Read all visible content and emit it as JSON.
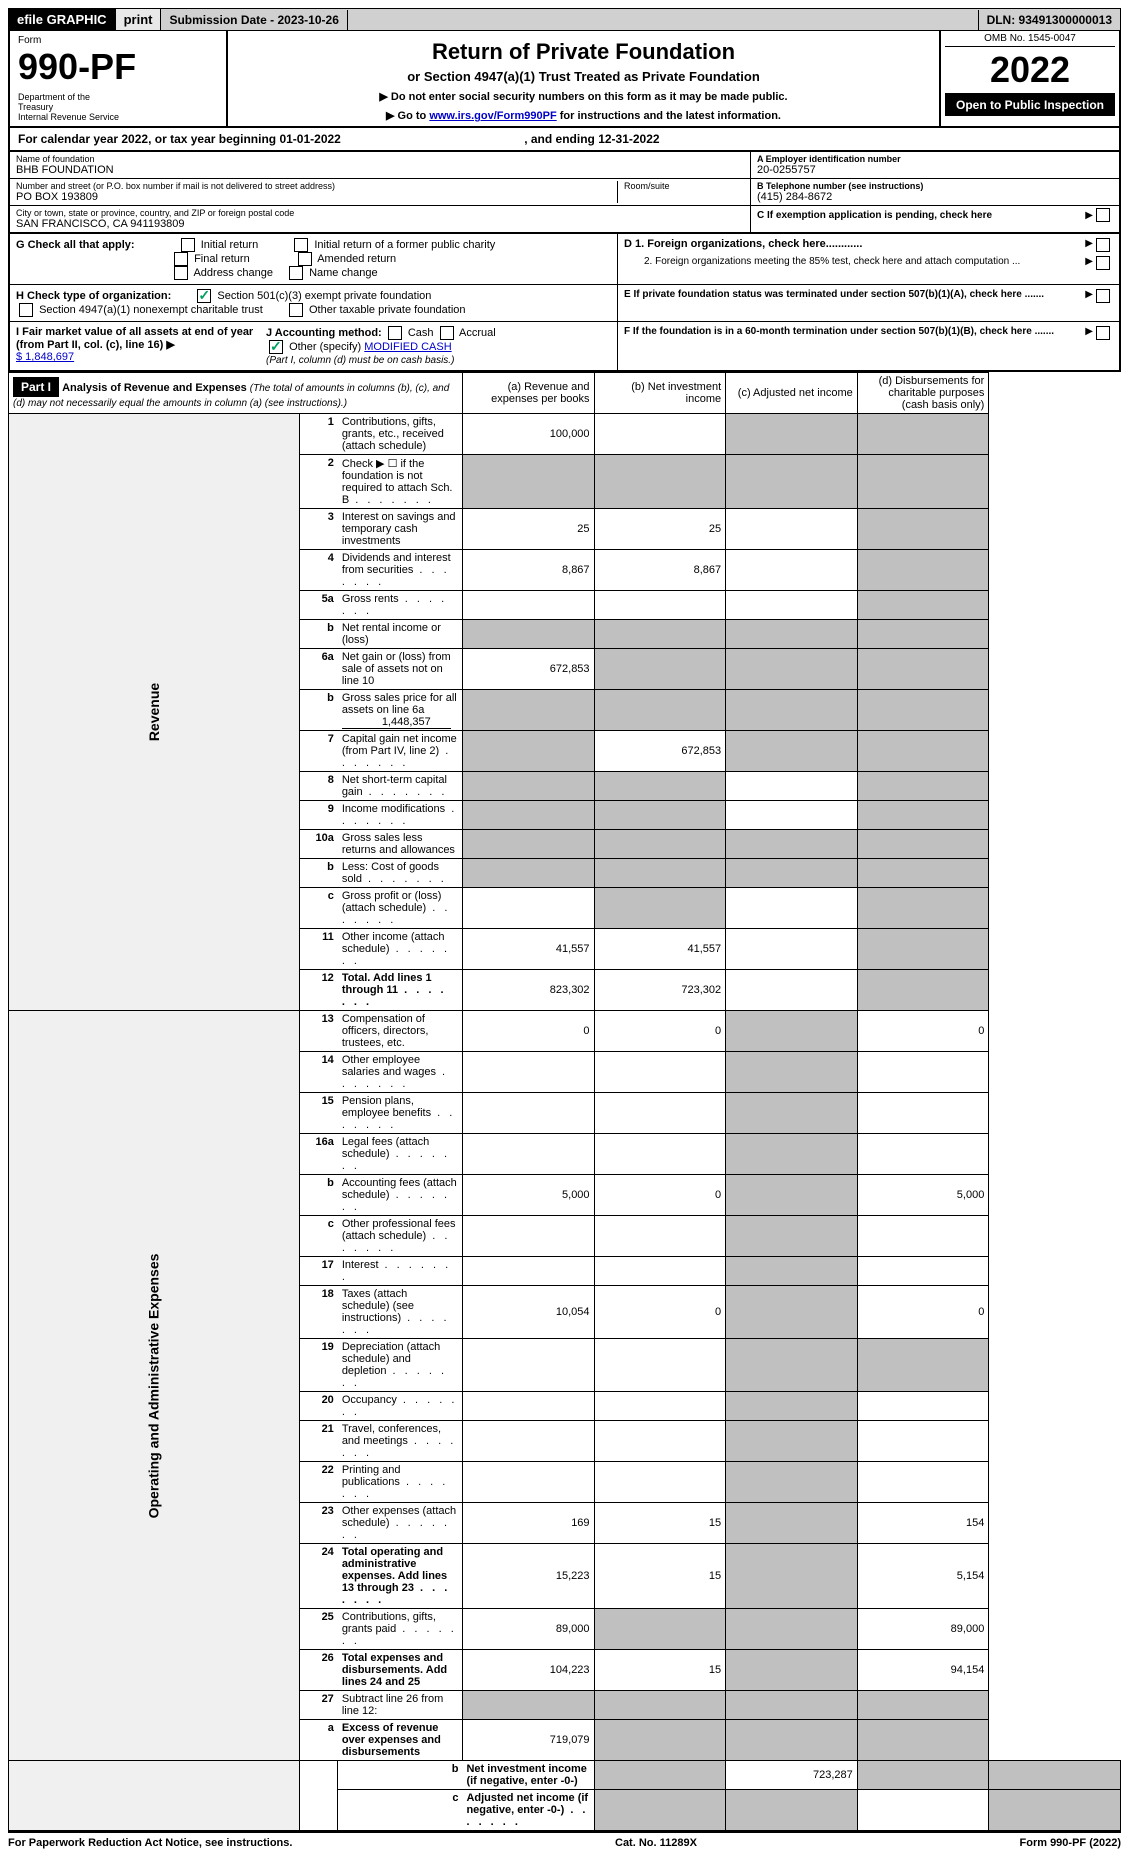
{
  "top_bar": {
    "efile": "efile GRAPHIC",
    "print": "print",
    "submission": "Submission Date - 2023-10-26",
    "dln": "DLN: 93491300000013"
  },
  "header": {
    "form_label": "Form",
    "form_number": "990-PF",
    "dept": "Department of the Treasury\nInternal Revenue Service",
    "title": "Return of Private Foundation",
    "subtitle": "or Section 4947(a)(1) Trust Treated as Private Foundation",
    "note1": "▶ Do not enter social security numbers on this form as it may be made public.",
    "note2_prefix": "▶ Go to ",
    "note2_link": "www.irs.gov/Form990PF",
    "note2_suffix": " for instructions and the latest information.",
    "omb": "OMB No. 1545-0047",
    "year": "2022",
    "open_public": "Open to Public Inspection"
  },
  "cal_year": {
    "prefix": "For calendar year 2022, or tax year beginning ",
    "begin": "01-01-2022",
    "mid": " , and ending ",
    "end": "12-31-2022"
  },
  "entity": {
    "name_label": "Name of foundation",
    "name": "BHB FOUNDATION",
    "addr_label": "Number and street (or P.O. box number if mail is not delivered to street address)",
    "addr": "PO BOX 193809",
    "room_label": "Room/suite",
    "city_label": "City or town, state or province, country, and ZIP or foreign postal code",
    "city": "SAN FRANCISCO, CA  941193809",
    "a_label": "A Employer identification number",
    "ein": "20-0255757",
    "b_label": "B Telephone number (see instructions)",
    "phone": "(415) 284-8672",
    "c_label": "C If exemption application is pending, check here"
  },
  "checks": {
    "g_label": "G Check all that apply:",
    "g1": "Initial return",
    "g2": "Initial return of a former public charity",
    "g3": "Final return",
    "g4": "Amended return",
    "g5": "Address change",
    "g6": "Name change",
    "h_label": "H Check type of organization:",
    "h1": "Section 501(c)(3) exempt private foundation",
    "h2": "Section 4947(a)(1) nonexempt charitable trust",
    "h3": "Other taxable private foundation",
    "i_label": "I Fair market value of all assets at end of year (from Part II, col. (c), line 16) ▶",
    "i_value": "$  1,848,697",
    "j_label": "J Accounting method:",
    "j1": "Cash",
    "j2": "Accrual",
    "j3": "Other (specify)",
    "j3_value": "MODIFIED CASH",
    "j_note": "(Part I, column (d) must be on cash basis.)",
    "d1": "D 1. Foreign organizations, check here............",
    "d2": "2. Foreign organizations meeting the 85% test, check here and attach computation ...",
    "e_label": "E  If private foundation status was terminated under section 507(b)(1)(A), check here .......",
    "f_label": "F  If the foundation is in a 60-month termination under section 507(b)(1)(B), check here ......."
  },
  "part1": {
    "label": "Part I",
    "title": "Analysis of Revenue and Expenses",
    "note": "(The total of amounts in columns (b), (c), and (d) may not necessarily equal the amounts in column (a) (see instructions).)",
    "col_a": "(a) Revenue and expenses per books",
    "col_b": "(b) Net investment income",
    "col_c": "(c) Adjusted net income",
    "col_d": "(d) Disbursements for charitable purposes (cash basis only)",
    "side_rev": "Revenue",
    "side_exp": "Operating and Administrative Expenses"
  },
  "rows": [
    {
      "n": "1",
      "d": "Contributions, gifts, grants, etc., received (attach schedule)",
      "a": "100,000",
      "b": "",
      "c": "grey",
      "dv": "grey"
    },
    {
      "n": "2",
      "d": "Check ▶ ☐ if the foundation is not required to attach Sch. B",
      "dots": true,
      "a": "grey",
      "b": "grey",
      "c": "grey",
      "dv": "grey",
      "bold": false
    },
    {
      "n": "3",
      "d": "Interest on savings and temporary cash investments",
      "a": "25",
      "b": "25",
      "c": "",
      "dv": "grey"
    },
    {
      "n": "4",
      "d": "Dividends and interest from securities",
      "dots": true,
      "a": "8,867",
      "b": "8,867",
      "c": "",
      "dv": "grey"
    },
    {
      "n": "5a",
      "d": "Gross rents",
      "dots": true,
      "a": "",
      "b": "",
      "c": "",
      "dv": "grey"
    },
    {
      "n": "b",
      "d": "Net rental income or (loss)",
      "a": "grey",
      "b": "grey",
      "c": "grey",
      "dv": "grey",
      "inset": true
    },
    {
      "n": "6a",
      "d": "Net gain or (loss) from sale of assets not on line 10",
      "a": "672,853",
      "b": "grey",
      "c": "grey",
      "dv": "grey"
    },
    {
      "n": "b",
      "d": "Gross sales price for all assets on line 6a",
      "inset": true,
      "inset_val": "1,448,357",
      "a": "grey",
      "b": "grey",
      "c": "grey",
      "dv": "grey"
    },
    {
      "n": "7",
      "d": "Capital gain net income (from Part IV, line 2)",
      "dots": true,
      "a": "grey",
      "b": "672,853",
      "c": "grey",
      "dv": "grey"
    },
    {
      "n": "8",
      "d": "Net short-term capital gain",
      "dots": true,
      "a": "grey",
      "b": "grey",
      "c": "",
      "dv": "grey"
    },
    {
      "n": "9",
      "d": "Income modifications",
      "dots": true,
      "a": "grey",
      "b": "grey",
      "c": "",
      "dv": "grey"
    },
    {
      "n": "10a",
      "d": "Gross sales less returns and allowances",
      "inset": true,
      "a": "grey",
      "b": "grey",
      "c": "grey",
      "dv": "grey"
    },
    {
      "n": "b",
      "d": "Less: Cost of goods sold",
      "dots": true,
      "inset": true,
      "a": "grey",
      "b": "grey",
      "c": "grey",
      "dv": "grey"
    },
    {
      "n": "c",
      "d": "Gross profit or (loss) (attach schedule)",
      "dots": true,
      "a": "",
      "b": "grey",
      "c": "",
      "dv": "grey"
    },
    {
      "n": "11",
      "d": "Other income (attach schedule)",
      "dots": true,
      "a": "41,557",
      "b": "41,557",
      "c": "",
      "dv": "grey"
    },
    {
      "n": "12",
      "d": "Total. Add lines 1 through 11",
      "dots": true,
      "a": "823,302",
      "b": "723,302",
      "c": "",
      "dv": "grey",
      "bold": true
    },
    {
      "n": "13",
      "d": "Compensation of officers, directors, trustees, etc.",
      "a": "0",
      "b": "0",
      "c": "grey",
      "dv": "0"
    },
    {
      "n": "14",
      "d": "Other employee salaries and wages",
      "dots": true,
      "a": "",
      "b": "",
      "c": "grey",
      "dv": ""
    },
    {
      "n": "15",
      "d": "Pension plans, employee benefits",
      "dots": true,
      "a": "",
      "b": "",
      "c": "grey",
      "dv": ""
    },
    {
      "n": "16a",
      "d": "Legal fees (attach schedule)",
      "dots": true,
      "a": "",
      "b": "",
      "c": "grey",
      "dv": ""
    },
    {
      "n": "b",
      "d": "Accounting fees (attach schedule)",
      "dots": true,
      "a": "5,000",
      "b": "0",
      "c": "grey",
      "dv": "5,000"
    },
    {
      "n": "c",
      "d": "Other professional fees (attach schedule)",
      "dots": true,
      "a": "",
      "b": "",
      "c": "grey",
      "dv": ""
    },
    {
      "n": "17",
      "d": "Interest",
      "dots": true,
      "a": "",
      "b": "",
      "c": "grey",
      "dv": ""
    },
    {
      "n": "18",
      "d": "Taxes (attach schedule) (see instructions)",
      "dots": true,
      "a": "10,054",
      "b": "0",
      "c": "grey",
      "dv": "0"
    },
    {
      "n": "19",
      "d": "Depreciation (attach schedule) and depletion",
      "dots": true,
      "a": "",
      "b": "",
      "c": "grey",
      "dv": "grey"
    },
    {
      "n": "20",
      "d": "Occupancy",
      "dots": true,
      "a": "",
      "b": "",
      "c": "grey",
      "dv": ""
    },
    {
      "n": "21",
      "d": "Travel, conferences, and meetings",
      "dots": true,
      "a": "",
      "b": "",
      "c": "grey",
      "dv": ""
    },
    {
      "n": "22",
      "d": "Printing and publications",
      "dots": true,
      "a": "",
      "b": "",
      "c": "grey",
      "dv": ""
    },
    {
      "n": "23",
      "d": "Other expenses (attach schedule)",
      "dots": true,
      "a": "169",
      "b": "15",
      "c": "grey",
      "dv": "154"
    },
    {
      "n": "24",
      "d": "Total operating and administrative expenses. Add lines 13 through 23",
      "dots": true,
      "a": "15,223",
      "b": "15",
      "c": "grey",
      "dv": "5,154",
      "bold": true
    },
    {
      "n": "25",
      "d": "Contributions, gifts, grants paid",
      "dots": true,
      "a": "89,000",
      "b": "grey",
      "c": "grey",
      "dv": "89,000"
    },
    {
      "n": "26",
      "d": "Total expenses and disbursements. Add lines 24 and 25",
      "a": "104,223",
      "b": "15",
      "c": "grey",
      "dv": "94,154",
      "bold": true
    },
    {
      "n": "27",
      "d": "Subtract line 26 from line 12:",
      "a": "grey",
      "b": "grey",
      "c": "grey",
      "dv": "grey"
    },
    {
      "n": "a",
      "d": "Excess of revenue over expenses and disbursements",
      "a": "719,079",
      "b": "grey",
      "c": "grey",
      "dv": "grey",
      "bold": true
    },
    {
      "n": "b",
      "d": "Net investment income (if negative, enter -0-)",
      "a": "grey",
      "b": "723,287",
      "c": "grey",
      "dv": "grey",
      "bold": true
    },
    {
      "n": "c",
      "d": "Adjusted net income (if negative, enter -0-)",
      "dots": true,
      "a": "grey",
      "b": "grey",
      "c": "",
      "dv": "grey",
      "bold": true
    }
  ],
  "footer": {
    "left": "For Paperwork Reduction Act Notice, see instructions.",
    "center": "Cat. No. 11289X",
    "right": "Form 990-PF (2022)"
  },
  "colors": {
    "link": "#0000cc",
    "check_green": "#00a060",
    "grey_cell": "#c0c0c0",
    "bg": "#ffffff"
  }
}
